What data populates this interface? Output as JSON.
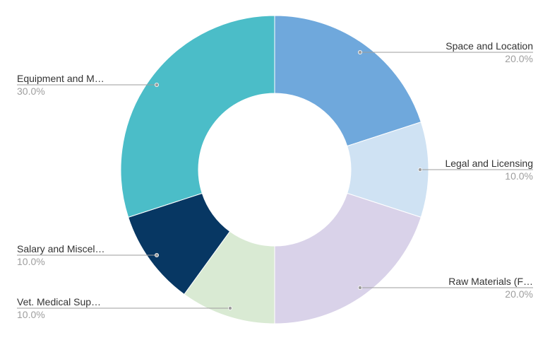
{
  "chart_data": {
    "type": "pie",
    "donut": true,
    "slices": [
      {
        "label": "Space and Location",
        "value": 20.0,
        "percent_label": "20.0%",
        "color": "#6fa8dc"
      },
      {
        "label": "Legal and Licensing",
        "value": 10.0,
        "percent_label": "10.0%",
        "color": "#cfe2f3"
      },
      {
        "label": "Raw Materials (F…",
        "value": 20.0,
        "percent_label": "20.0%",
        "color": "#d9d2e9"
      },
      {
        "label": "Vet. Medical Sup…",
        "value": 10.0,
        "percent_label": "10.0%",
        "color": "#d9ead3"
      },
      {
        "label": "Salary and Miscel…",
        "value": 10.0,
        "percent_label": "10.0%",
        "color": "#073763"
      },
      {
        "label": "Equipment and M…",
        "value": 30.0,
        "percent_label": "30.0%",
        "color": "#4bbdc8"
      }
    ]
  }
}
